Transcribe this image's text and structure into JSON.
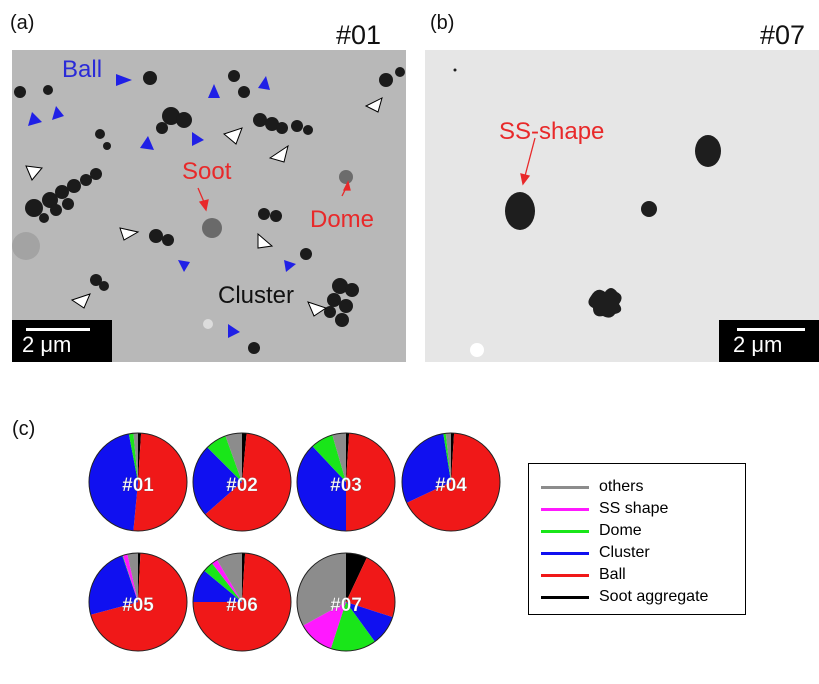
{
  "panels": {
    "a": {
      "letter": "(a)",
      "sample": "#01",
      "scalebar": "2 μm",
      "labels": {
        "ball": "Ball",
        "soot": "Soot",
        "dome": "Dome",
        "cluster": "Cluster"
      }
    },
    "b": {
      "letter": "(b)",
      "sample": "#07",
      "scalebar": "2 μm",
      "labels": {
        "ss_shape": "SS-shape"
      }
    },
    "c": {
      "letter": "(c)"
    }
  },
  "colors": {
    "others": "#8c8c8c",
    "ss_shape": "#ff19ff",
    "dome": "#19e619",
    "cluster": "#1010f0",
    "ball": "#f01818",
    "soot_aggregate": "#000000",
    "annotation_blue": "#2a2ad8",
    "annotation_red": "#e8292a",
    "tem_background_a": "#b9b9b9",
    "tem_background_b": "#e6e6e6"
  },
  "chart_data": {
    "type": "pie",
    "legend": [
      "others",
      "SS shape",
      "Dome",
      "Cluster",
      "Ball",
      "Soot aggregate"
    ],
    "slice_order": [
      "soot_aggregate",
      "ball",
      "cluster",
      "dome",
      "ss_shape",
      "others"
    ],
    "series": [
      {
        "name": "#01",
        "values": {
          "soot_aggregate": 1.0,
          "ball": 50.5,
          "cluster": 45.5,
          "dome": 1.5,
          "ss_shape": 0.0,
          "others": 1.5
        }
      },
      {
        "name": "#02",
        "values": {
          "soot_aggregate": 1.5,
          "ball": 62.0,
          "cluster": 24.0,
          "dome": 7.0,
          "ss_shape": 0.0,
          "others": 5.5
        }
      },
      {
        "name": "#03",
        "values": {
          "soot_aggregate": 1.0,
          "ball": 49.0,
          "cluster": 38.0,
          "dome": 7.5,
          "ss_shape": 0.0,
          "others": 4.5
        }
      },
      {
        "name": "#04",
        "values": {
          "soot_aggregate": 1.0,
          "ball": 67.0,
          "cluster": 29.5,
          "dome": 0.8,
          "ss_shape": 0.0,
          "others": 1.7
        }
      },
      {
        "name": "#05",
        "values": {
          "soot_aggregate": 0.8,
          "ball": 70.0,
          "cluster": 24.0,
          "dome": 0.2,
          "ss_shape": 1.5,
          "others": 3.5
        }
      },
      {
        "name": "#06",
        "values": {
          "soot_aggregate": 1.0,
          "ball": 74.0,
          "cluster": 11.0,
          "dome": 3.5,
          "ss_shape": 2.0,
          "others": 8.5
        }
      },
      {
        "name": "#07",
        "values": {
          "soot_aggregate": 7.0,
          "ball": 23.0,
          "cluster": 10.0,
          "dome": 15.0,
          "ss_shape": 12.0,
          "others": 33.0
        }
      }
    ]
  }
}
